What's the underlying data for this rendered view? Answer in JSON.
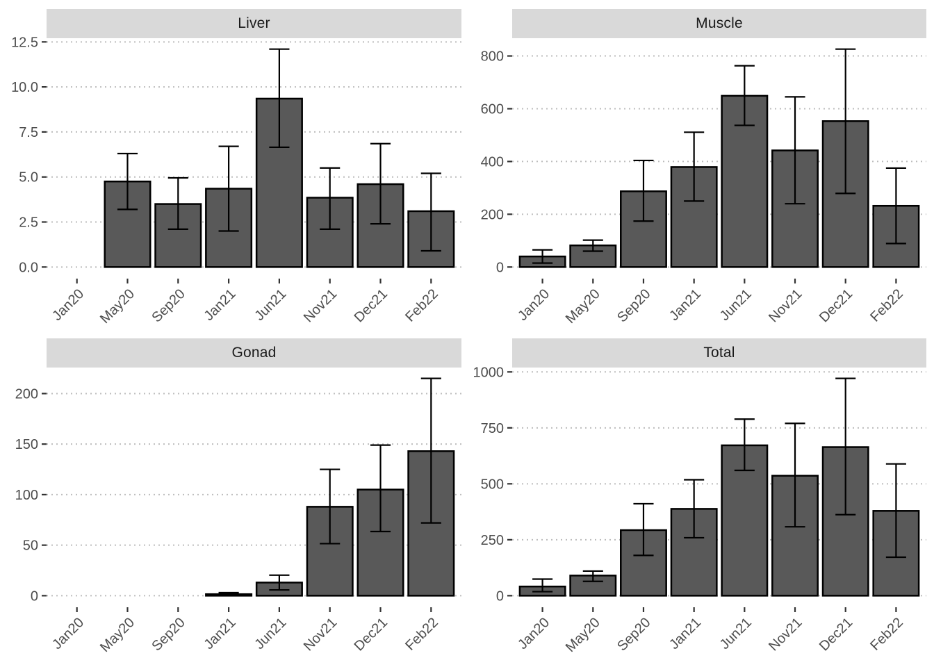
{
  "figure": {
    "background": "#ffffff",
    "strip_fill": "#d9d9d9",
    "strip_text_color": "#1a1a1a",
    "bar_fill": "#595959",
    "bar_stroke": "#000000",
    "error_bar_color": "#000000",
    "axis_text_color": "#4d4d4d",
    "tick_color": "#333333",
    "grid_color": "#bdbdbd"
  },
  "chart_data": [
    {
      "type": "bar",
      "title": "Liver",
      "categories": [
        "Jan20",
        "May20",
        "Sep20",
        "Jan21",
        "Jun21",
        "Nov21",
        "Dec21",
        "Feb22"
      ],
      "values": [
        null,
        4.75,
        3.5,
        4.35,
        9.35,
        3.85,
        4.6,
        3.1
      ],
      "error_low": [
        null,
        3.2,
        2.1,
        2.0,
        6.65,
        2.1,
        2.4,
        0.9
      ],
      "error_high": [
        null,
        6.3,
        4.95,
        6.7,
        12.1,
        5.5,
        6.85,
        5.2
      ],
      "ytick_values": [
        0,
        2.5,
        5,
        7.5,
        10,
        12.5
      ],
      "ytick_labels": [
        "0.0",
        "2.5",
        "5.0",
        "7.5",
        "10.0",
        "12.5"
      ],
      "ylim": [
        0,
        12.5
      ],
      "xlabel": "",
      "ylabel": "",
      "legend": "none",
      "grid": "horizontal-dotted-major",
      "x_tick_rotation": 45,
      "error_bars": true
    },
    {
      "type": "bar",
      "title": "Muscle",
      "categories": [
        "Jan20",
        "May20",
        "Sep20",
        "Jan21",
        "Jun21",
        "Nov21",
        "Dec21",
        "Feb22"
      ],
      "values": [
        40,
        82,
        287,
        379,
        649,
        442,
        553,
        232
      ],
      "error_low": [
        15,
        60,
        174,
        250,
        537,
        240,
        279,
        89
      ],
      "error_high": [
        65,
        102,
        404,
        511,
        763,
        645,
        826,
        375
      ],
      "ytick_values": [
        0,
        200,
        400,
        600,
        800
      ],
      "ytick_labels": [
        "0",
        "200",
        "400",
        "600",
        "800"
      ],
      "ylim": [
        0,
        800
      ],
      "xlabel": "",
      "ylabel": "",
      "legend": "none",
      "grid": "horizontal-dotted-major",
      "x_tick_rotation": 45,
      "error_bars": true
    },
    {
      "type": "bar",
      "title": "Gonad",
      "categories": [
        "Jan20",
        "May20",
        "Sep20",
        "Jan21",
        "Jun21",
        "Nov21",
        "Dec21",
        "Feb22"
      ],
      "values": [
        null,
        null,
        null,
        1.5,
        13,
        88,
        105,
        143
      ],
      "error_low": [
        null,
        null,
        null,
        0.4,
        5.7,
        51.5,
        63.5,
        72
      ],
      "error_high": [
        null,
        null,
        null,
        3,
        20.3,
        125,
        149,
        215
      ],
      "ytick_values": [
        0,
        50,
        100,
        150,
        200
      ],
      "ytick_labels": [
        "0",
        "50",
        "100",
        "150",
        "200"
      ],
      "ylim": [
        0,
        200
      ],
      "xlabel": "",
      "ylabel": "",
      "legend": "none",
      "grid": "horizontal-dotted-major",
      "x_tick_rotation": 45,
      "error_bars": true
    },
    {
      "type": "bar",
      "title": "Total",
      "categories": [
        "Jan20",
        "May20",
        "Sep20",
        "Jan21",
        "Jun21",
        "Nov21",
        "Dec21",
        "Feb22"
      ],
      "values": [
        41,
        90,
        293,
        388,
        672,
        536,
        664,
        379
      ],
      "error_low": [
        18,
        64,
        180,
        259,
        560,
        308,
        362,
        172
      ],
      "error_high": [
        74,
        110,
        411,
        518,
        789,
        770,
        971,
        589
      ],
      "ytick_values": [
        0,
        250,
        500,
        750,
        1000
      ],
      "ytick_labels": [
        "0",
        "250",
        "500",
        "750",
        "1000"
      ],
      "ylim": [
        0,
        1000
      ],
      "xlabel": "",
      "ylabel": "",
      "legend": "none",
      "grid": "horizontal-dotted-major",
      "x_tick_rotation": 45,
      "error_bars": true
    }
  ]
}
